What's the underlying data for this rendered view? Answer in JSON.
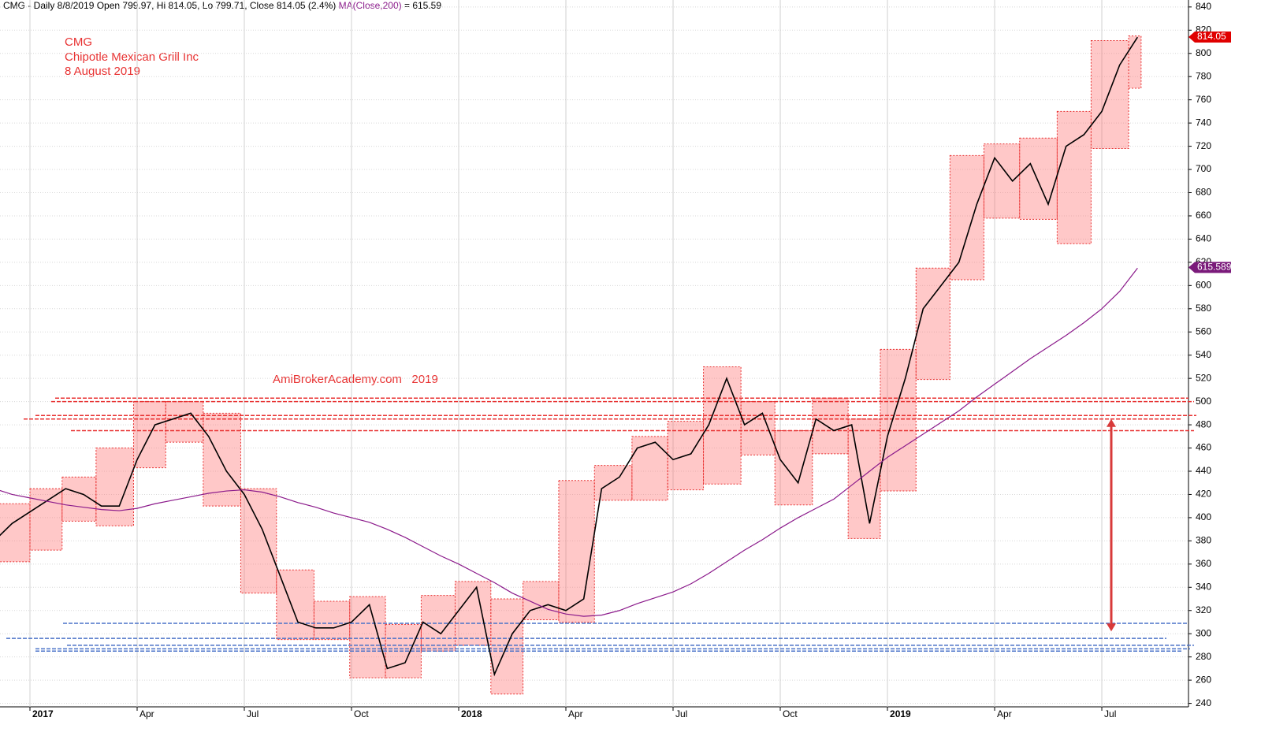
{
  "chart_data": {
    "type": "line",
    "header": "CMG - Daily 8/8/2019 Open 799.97, Hi 814.05, Lo 799.71, Close 814.05 (2.4%)",
    "ma_readout": "= 615.59",
    "annotations": [
      "CMG",
      "Chipotle Mexican Grill Inc",
      "8 August 2019"
    ],
    "watermark": "AmiBrokerAcademy.com   2019",
    "categories": [
      null,
      null,
      "2017",
      null,
      null,
      null,
      null,
      null,
      "Apr",
      null,
      null,
      null,
      null,
      null,
      "Jul",
      null,
      null,
      null,
      null,
      null,
      "Oct",
      null,
      null,
      null,
      null,
      null,
      "2018",
      null,
      null,
      null,
      null,
      null,
      "Apr",
      null,
      null,
      null,
      null,
      null,
      "Jul",
      null,
      null,
      null,
      null,
      null,
      "Oct",
      null,
      null,
      null,
      null,
      null,
      "2019",
      null,
      null,
      null,
      null,
      null,
      "Apr",
      null,
      null,
      null,
      null,
      null,
      "Jul",
      null,
      null
    ],
    "series": [
      {
        "color": "#000000",
        "values": [
          380,
          395,
          405,
          415,
          425,
          420,
          410,
          410,
          450,
          480,
          485,
          490,
          470,
          440,
          420,
          390,
          350,
          310,
          305,
          305,
          310,
          325,
          270,
          275,
          310,
          300,
          320,
          340,
          265,
          300,
          320,
          325,
          320,
          330,
          425,
          435,
          460,
          465,
          450,
          455,
          480,
          520,
          480,
          490,
          450,
          430,
          485,
          475,
          480,
          395,
          470,
          520,
          580,
          600,
          620,
          670,
          710,
          690,
          705,
          670,
          720,
          730,
          750,
          790,
          814
        ]
      },
      {
        "name": "MA(Close,200)",
        "color": "#8b1a8b",
        "values": [
          425,
          420,
          417,
          414,
          411,
          409,
          407,
          406,
          408,
          412,
          415,
          418,
          421,
          423,
          424,
          422,
          418,
          413,
          409,
          404,
          400,
          396,
          390,
          383,
          375,
          367,
          360,
          352,
          344,
          335,
          328,
          321,
          317,
          315,
          316,
          320,
          326,
          331,
          336,
          343,
          352,
          362,
          372,
          381,
          391,
          400,
          408,
          416,
          428,
          440,
          452,
          462,
          472,
          482,
          492,
          504,
          515,
          526,
          537,
          547,
          557,
          568,
          580,
          595,
          615
        ]
      }
    ],
    "zones": [
      {
        "from": 0.3,
        "to": 2.0,
        "low": 362,
        "high": 412
      },
      {
        "from": 2.0,
        "to": 3.8,
        "low": 372,
        "high": 425
      },
      {
        "from": 3.8,
        "to": 5.7,
        "low": 397,
        "high": 435
      },
      {
        "from": 5.7,
        "to": 7.8,
        "low": 393,
        "high": 460
      },
      {
        "from": 7.8,
        "to": 9.6,
        "low": 443,
        "high": 500
      },
      {
        "from": 9.6,
        "to": 11.7,
        "low": 465,
        "high": 500
      },
      {
        "from": 11.7,
        "to": 13.8,
        "low": 410,
        "high": 490
      },
      {
        "from": 13.8,
        "to": 15.8,
        "low": 335,
        "high": 425
      },
      {
        "from": 15.8,
        "to": 17.9,
        "low": 295,
        "high": 355
      },
      {
        "from": 17.9,
        "to": 19.9,
        "low": 295,
        "high": 328
      },
      {
        "from": 19.9,
        "to": 21.9,
        "low": 262,
        "high": 332
      },
      {
        "from": 21.9,
        "to": 23.9,
        "low": 262,
        "high": 308
      },
      {
        "from": 23.9,
        "to": 25.8,
        "low": 285,
        "high": 333
      },
      {
        "from": 25.8,
        "to": 27.8,
        "low": 290,
        "high": 345
      },
      {
        "from": 27.8,
        "to": 29.6,
        "low": 248,
        "high": 330
      },
      {
        "from": 29.6,
        "to": 31.6,
        "low": 312,
        "high": 345
      },
      {
        "from": 31.6,
        "to": 33.6,
        "low": 310,
        "high": 432
      },
      {
        "from": 33.6,
        "to": 35.7,
        "low": 415,
        "high": 445
      },
      {
        "from": 35.7,
        "to": 37.7,
        "low": 415,
        "high": 470
      },
      {
        "from": 37.7,
        "to": 39.7,
        "low": 424,
        "high": 483
      },
      {
        "from": 39.7,
        "to": 41.8,
        "low": 429,
        "high": 530
      },
      {
        "from": 41.8,
        "to": 43.7,
        "low": 454,
        "high": 500
      },
      {
        "from": 43.7,
        "to": 45.8,
        "low": 411,
        "high": 475
      },
      {
        "from": 45.8,
        "to": 47.8,
        "low": 455,
        "high": 503
      },
      {
        "from": 47.8,
        "to": 49.6,
        "low": 382,
        "high": 485
      },
      {
        "from": 49.6,
        "to": 51.6,
        "low": 423,
        "high": 545
      },
      {
        "from": 51.6,
        "to": 53.5,
        "low": 519,
        "high": 615
      },
      {
        "from": 53.5,
        "to": 55.4,
        "low": 605,
        "high": 712
      },
      {
        "from": 55.4,
        "to": 57.4,
        "low": 658,
        "high": 722
      },
      {
        "from": 57.4,
        "to": 59.5,
        "low": 657,
        "high": 727
      },
      {
        "from": 59.5,
        "to": 61.4,
        "low": 636,
        "high": 750
      },
      {
        "from": 61.4,
        "to": 63.5,
        "low": 718,
        "high": 811
      },
      {
        "from": 63.5,
        "to": 64.2,
        "low": 770,
        "high": 815
      }
    ],
    "resistance_lines": [
      503,
      500,
      488,
      485,
      475
    ],
    "support_lines": [
      309,
      296,
      290,
      287,
      285
    ],
    "arrow": [
      485,
      302
    ],
    "last_price": 814.05,
    "ma_value": 615.589,
    "ylim": [
      237,
      846
    ],
    "yticks": [
      240,
      260,
      280,
      300,
      320,
      340,
      360,
      380,
      400,
      420,
      440,
      460,
      480,
      500,
      520,
      540,
      560,
      580,
      600,
      620,
      640,
      660,
      680,
      700,
      720,
      740,
      760,
      780,
      800,
      820,
      840
    ],
    "grid": true
  }
}
